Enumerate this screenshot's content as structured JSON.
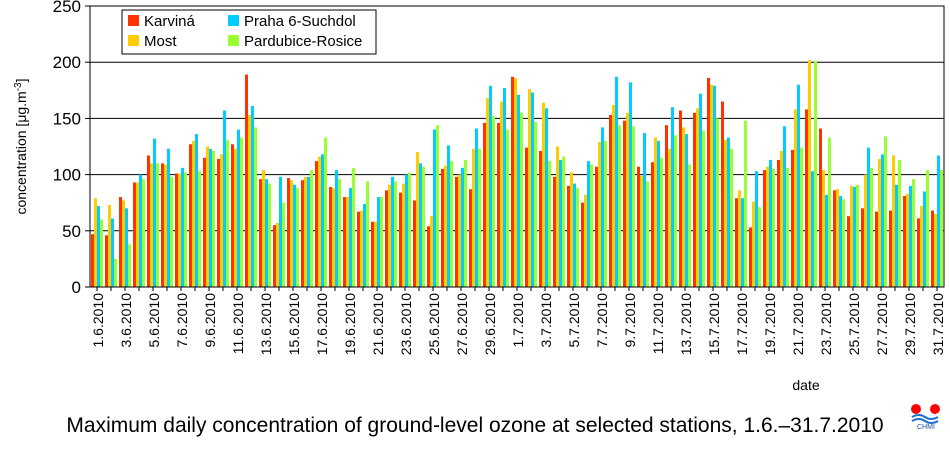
{
  "chart_data": {
    "type": "bar",
    "title": "",
    "xlabel": "date",
    "ylabel": "concentration [μg.m-3]",
    "ylim": [
      0,
      250
    ],
    "yticks": [
      "0",
      "50",
      "100",
      "150",
      "200",
      "250"
    ],
    "grid": true,
    "legend_placement": "top-left",
    "categories": [
      "1.6.2010",
      "2.6.2010",
      "3.6.2010",
      "4.6.2010",
      "5.6.2010",
      "6.6.2010",
      "7.6.2010",
      "8.6.2010",
      "9.6.2010",
      "10.6.2010",
      "11.6.2010",
      "12.6.2010",
      "13.6.2010",
      "14.6.2010",
      "15.6.2010",
      "16.6.2010",
      "17.6.2010",
      "18.6.2010",
      "19.6.2010",
      "20.6.2010",
      "21.6.2010",
      "22.6.2010",
      "23.6.2010",
      "24.6.2010",
      "25.6.2010",
      "26.6.2010",
      "27.6.2010",
      "28.6.2010",
      "29.6.2010",
      "30.6.2010",
      "1.7.2010",
      "2.7.2010",
      "3.7.2010",
      "4.7.2010",
      "5.7.2010",
      "6.7.2010",
      "7.7.2010",
      "8.7.2010",
      "9.7.2010",
      "10.7.2010",
      "11.7.2010",
      "12.7.2010",
      "13.7.2010",
      "14.7.2010",
      "15.7.2010",
      "16.7.2010",
      "17.7.2010",
      "18.7.2010",
      "19.7.2010",
      "20.7.2010",
      "21.7.2010",
      "22.7.2010",
      "23.7.2010",
      "24.7.2010",
      "25.7.2010",
      "26.7.2010",
      "27.7.2010",
      "28.7.2010",
      "29.7.2010",
      "30.7.2010",
      "31.7.2010"
    ],
    "tick_labels": [
      "1.6.2010",
      "3.6.2010",
      "5.6.2010",
      "7.6.2010",
      "9.6.2010",
      "11.6.2010",
      "13.6.2010",
      "15.6.2010",
      "17.6.2010",
      "19.6.2010",
      "21.6.2010",
      "23.6.2010",
      "25.6.2010",
      "27.6.2010",
      "29.6.2010",
      "1.7.2010",
      "3.7.2010",
      "5.7.2010",
      "7.7.2010",
      "9.7.2010",
      "11.7.2010",
      "13.7.2010",
      "15.7.2010",
      "17.7.2010",
      "19.7.2010",
      "21.7.2010",
      "23.7.2010",
      "25.7.2010",
      "27.7.2010",
      "29.7.2010",
      "31.7.2010"
    ],
    "series": [
      {
        "name": "Karviná",
        "color": "#ff3300",
        "values": [
          47,
          46,
          80,
          93,
          117,
          110,
          101,
          127,
          115,
          114,
          127,
          189,
          96,
          55,
          97,
          95,
          112,
          89,
          80,
          67,
          58,
          86,
          84,
          77,
          54,
          105,
          98,
          87,
          146,
          146,
          187,
          124,
          121,
          98,
          90,
          75,
          107,
          153,
          148,
          107,
          111,
          144,
          157,
          155,
          186,
          165,
          79,
          53,
          104,
          113,
          122,
          158,
          141,
          86,
          63,
          70,
          67,
          68,
          81,
          61,
          68
        ]
      },
      {
        "name": "Most",
        "color": "#ffcc00",
        "values": [
          79,
          73,
          77,
          93,
          110,
          109,
          101,
          130,
          125,
          118,
          123,
          153,
          104,
          57,
          95,
          98,
          116,
          88,
          80,
          68,
          58,
          91,
          92,
          120,
          63,
          108,
          100,
          123,
          168,
          165,
          186,
          176,
          164,
          125,
          102,
          82,
          129,
          162,
          155,
          99,
          133,
          123,
          142,
          159,
          180,
          131,
          86,
          76,
          107,
          121,
          158,
          202,
          104,
          87,
          90,
          100,
          114,
          117,
          83,
          72,
          65
        ]
      },
      {
        "name": "Praha 6-Suchdol",
        "color": "#00ccff",
        "values": [
          72,
          61,
          70,
          100,
          132,
          123,
          106,
          136,
          123,
          157,
          140,
          161,
          96,
          98,
          91,
          98,
          118,
          104,
          88,
          74,
          80,
          98,
          100,
          110,
          140,
          126,
          106,
          141,
          179,
          177,
          171,
          173,
          159,
          113,
          92,
          112,
          142,
          187,
          182,
          137,
          130,
          160,
          136,
          172,
          179,
          133,
          79,
          103,
          113,
          143,
          180,
          103,
          82,
          81,
          89,
          124,
          118,
          91,
          90,
          85,
          117
        ]
      },
      {
        "name": "Pardubice-Rosice",
        "color": "#99ff33",
        "values": [
          60,
          25,
          38,
          96,
          110,
          98,
          102,
          103,
          121,
          131,
          133,
          142,
          92,
          75,
          88,
          104,
          133,
          96,
          106,
          94,
          80,
          94,
          102,
          107,
          144,
          112,
          113,
          123,
          152,
          140,
          155,
          147,
          112,
          116,
          88,
          109,
          130,
          144,
          143,
          94,
          115,
          135,
          109,
          139,
          150,
          123,
          148,
          71,
          105,
          106,
          124,
          201,
          133,
          78,
          91,
          106,
          134,
          113,
          96,
          104,
          104
        ]
      }
    ]
  },
  "caption": "Maximum daily concentration of ground-level ozone at selected stations, 1.6.–31.7.2010",
  "logo": {
    "text": "CHMI",
    "colors": {
      "dot": "#ff0000",
      "wave": "#1a6fd1"
    }
  },
  "frame_color": "#000000",
  "grid_color": "#000000"
}
